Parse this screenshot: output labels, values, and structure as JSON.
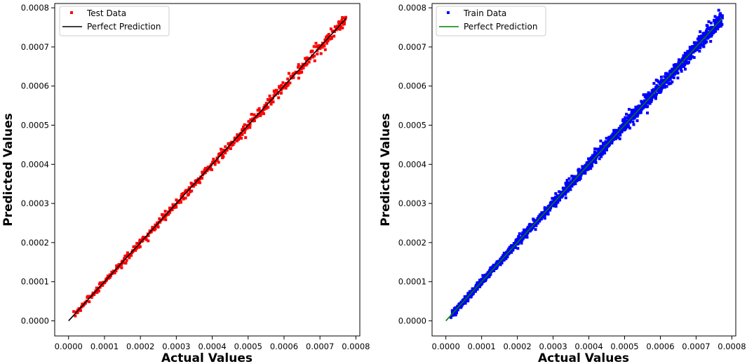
{
  "chart_data": [
    {
      "type": "scatter",
      "title": "",
      "xlabel": "Actual Values",
      "ylabel": "Predicted Values",
      "xlim": [
        -3.86e-05,
        0.000811
      ],
      "ylim": [
        -3.86e-05,
        0.000811
      ],
      "xticks": [
        "0.0000",
        "0.0001",
        "0.0002",
        "0.0003",
        "0.0004",
        "0.0005",
        "0.0006",
        "0.0007",
        "0.0008"
      ],
      "yticks": [
        "0.0000",
        "0.0001",
        "0.0002",
        "0.0003",
        "0.0004",
        "0.0005",
        "0.0006",
        "0.0007",
        "0.0008"
      ],
      "grid": false,
      "legend_position": "top-left",
      "series": [
        {
          "name": "Test Data",
          "kind": "scatter",
          "color": "#ff0000",
          "marker": "square",
          "x_range": [
            0.0,
            0.000773
          ],
          "max_deviation": 2.5e-05,
          "approx_points": 500
        },
        {
          "name": "Perfect Prediction",
          "kind": "line",
          "color": "#000000",
          "x": [
            0.0,
            0.000773
          ],
          "y": [
            0.0,
            0.000773
          ]
        }
      ]
    },
    {
      "type": "scatter",
      "title": "",
      "xlabel": "Actual Values",
      "ylabel": "Predicted Values",
      "xlim": [
        -3.86e-05,
        0.000811
      ],
      "ylim": [
        -3.86e-05,
        0.000811
      ],
      "xticks": [
        "0.0000",
        "0.0001",
        "0.0002",
        "0.0003",
        "0.0004",
        "0.0005",
        "0.0006",
        "0.0007",
        "0.0008"
      ],
      "yticks": [
        "0.0000",
        "0.0001",
        "0.0002",
        "0.0003",
        "0.0004",
        "0.0005",
        "0.0006",
        "0.0007",
        "0.0008"
      ],
      "grid": false,
      "legend_position": "top-left",
      "series": [
        {
          "name": "Train Data",
          "kind": "scatter",
          "color": "#0000ff",
          "marker": "square",
          "x_range": [
            0.0,
            0.000773
          ],
          "max_deviation": 2.8e-05,
          "approx_points": 1600
        },
        {
          "name": "Perfect Prediction",
          "kind": "line",
          "color": "#008000",
          "x": [
            0.0,
            0.000773
          ],
          "y": [
            0.0,
            0.000773
          ]
        }
      ]
    }
  ]
}
